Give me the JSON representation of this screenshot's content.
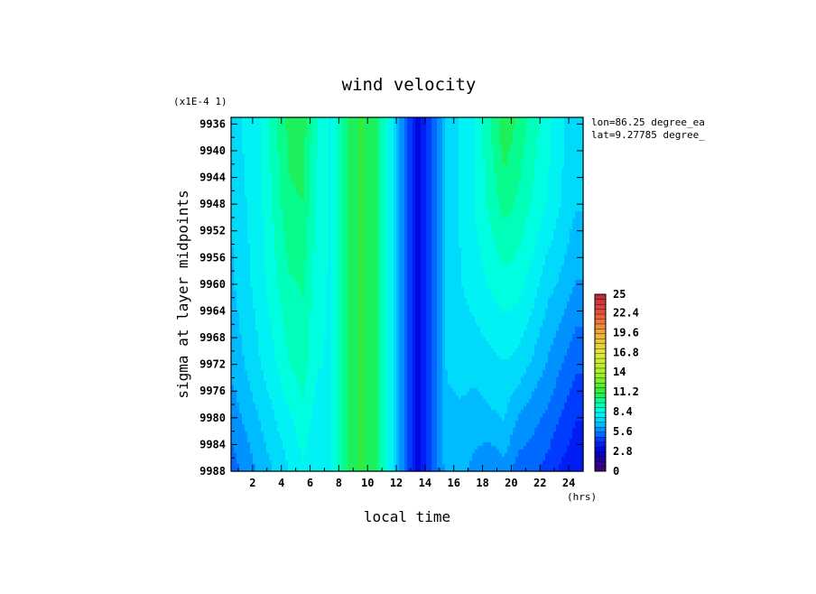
{
  "chart_data": {
    "type": "heatmap",
    "title": "wind velocity",
    "scale_note": "(x1E-4 1)",
    "xlabel": "local time",
    "xunit": "(hrs)",
    "ylabel": "sigma at layer midpoints",
    "xlim": [
      0.5,
      25
    ],
    "ylim": [
      9988,
      9935
    ],
    "x_ticks": [
      "2",
      "4",
      "6",
      "8",
      "10",
      "12",
      "14",
      "16",
      "18",
      "20",
      "22",
      "24"
    ],
    "y_ticks": [
      "9936",
      "9940",
      "9944",
      "9948",
      "9952",
      "9956",
      "9960",
      "9964",
      "9968",
      "9972",
      "9976",
      "9980",
      "9984",
      "9988"
    ],
    "annotations": [
      "lon=86.25 degree_ea",
      "lat=9.27785 degree_"
    ],
    "colorbar": {
      "min": 0,
      "max": 25,
      "tick_labels": [
        "25",
        "22.4",
        "19.6",
        "16.8",
        "14",
        "11.2",
        "8.4",
        "5.6",
        "2.8",
        "0"
      ]
    },
    "x": [
      0.5,
      1.5,
      2.5,
      3.5,
      4.5,
      5.5,
      6.5,
      7.5,
      8.5,
      9.5,
      10.5,
      11.5,
      12.5,
      13.5,
      14.5,
      15.5,
      16.5,
      17.5,
      18.5,
      19.5,
      20.5,
      21.5,
      22.5,
      23.5,
      24.5
    ],
    "y": [
      9936,
      9948,
      9960,
      9972,
      9980,
      9988
    ],
    "z": [
      [
        7.2,
        7.8,
        8.3,
        9.5,
        10.6,
        10.8,
        9.0,
        8.2,
        10.4,
        11.2,
        10.8,
        8.4,
        5.6,
        3.0,
        4.8,
        7.0,
        7.8,
        8.4,
        9.6,
        11.0,
        10.2,
        9.4,
        8.6,
        7.8,
        7.2
      ],
      [
        7.0,
        7.6,
        8.2,
        9.2,
        10.3,
        10.4,
        8.8,
        8.2,
        10.4,
        11.2,
        10.8,
        8.4,
        5.6,
        3.0,
        4.8,
        7.0,
        7.8,
        8.4,
        9.2,
        10.0,
        9.6,
        8.9,
        8.3,
        7.6,
        7.0
      ],
      [
        6.8,
        7.4,
        8.0,
        8.8,
        9.6,
        9.8,
        8.6,
        8.2,
        10.4,
        11.2,
        10.8,
        8.4,
        5.6,
        3.0,
        4.8,
        7.0,
        7.6,
        8.0,
        8.4,
        8.8,
        8.6,
        8.0,
        7.2,
        6.8,
        6.2
      ],
      [
        6.4,
        7.0,
        7.6,
        8.2,
        9.0,
        9.4,
        8.4,
        8.2,
        10.4,
        11.2,
        10.8,
        8.4,
        5.6,
        3.0,
        4.8,
        7.0,
        7.2,
        7.2,
        7.4,
        7.6,
        7.4,
        6.8,
        6.2,
        5.6,
        5.0
      ],
      [
        5.8,
        6.4,
        7.0,
        7.6,
        8.2,
        8.8,
        8.0,
        8.2,
        10.4,
        11.2,
        10.8,
        8.4,
        5.6,
        3.0,
        4.8,
        6.8,
        6.8,
        6.6,
        6.8,
        7.0,
        6.2,
        5.8,
        5.4,
        4.8,
        4.2
      ],
      [
        5.2,
        5.8,
        6.4,
        7.0,
        7.6,
        8.2,
        7.6,
        8.2,
        10.4,
        11.2,
        10.8,
        8.4,
        5.6,
        3.0,
        4.8,
        6.6,
        6.4,
        6.0,
        5.6,
        6.0,
        5.2,
        5.0,
        4.6,
        4.0,
        3.6
      ]
    ]
  }
}
